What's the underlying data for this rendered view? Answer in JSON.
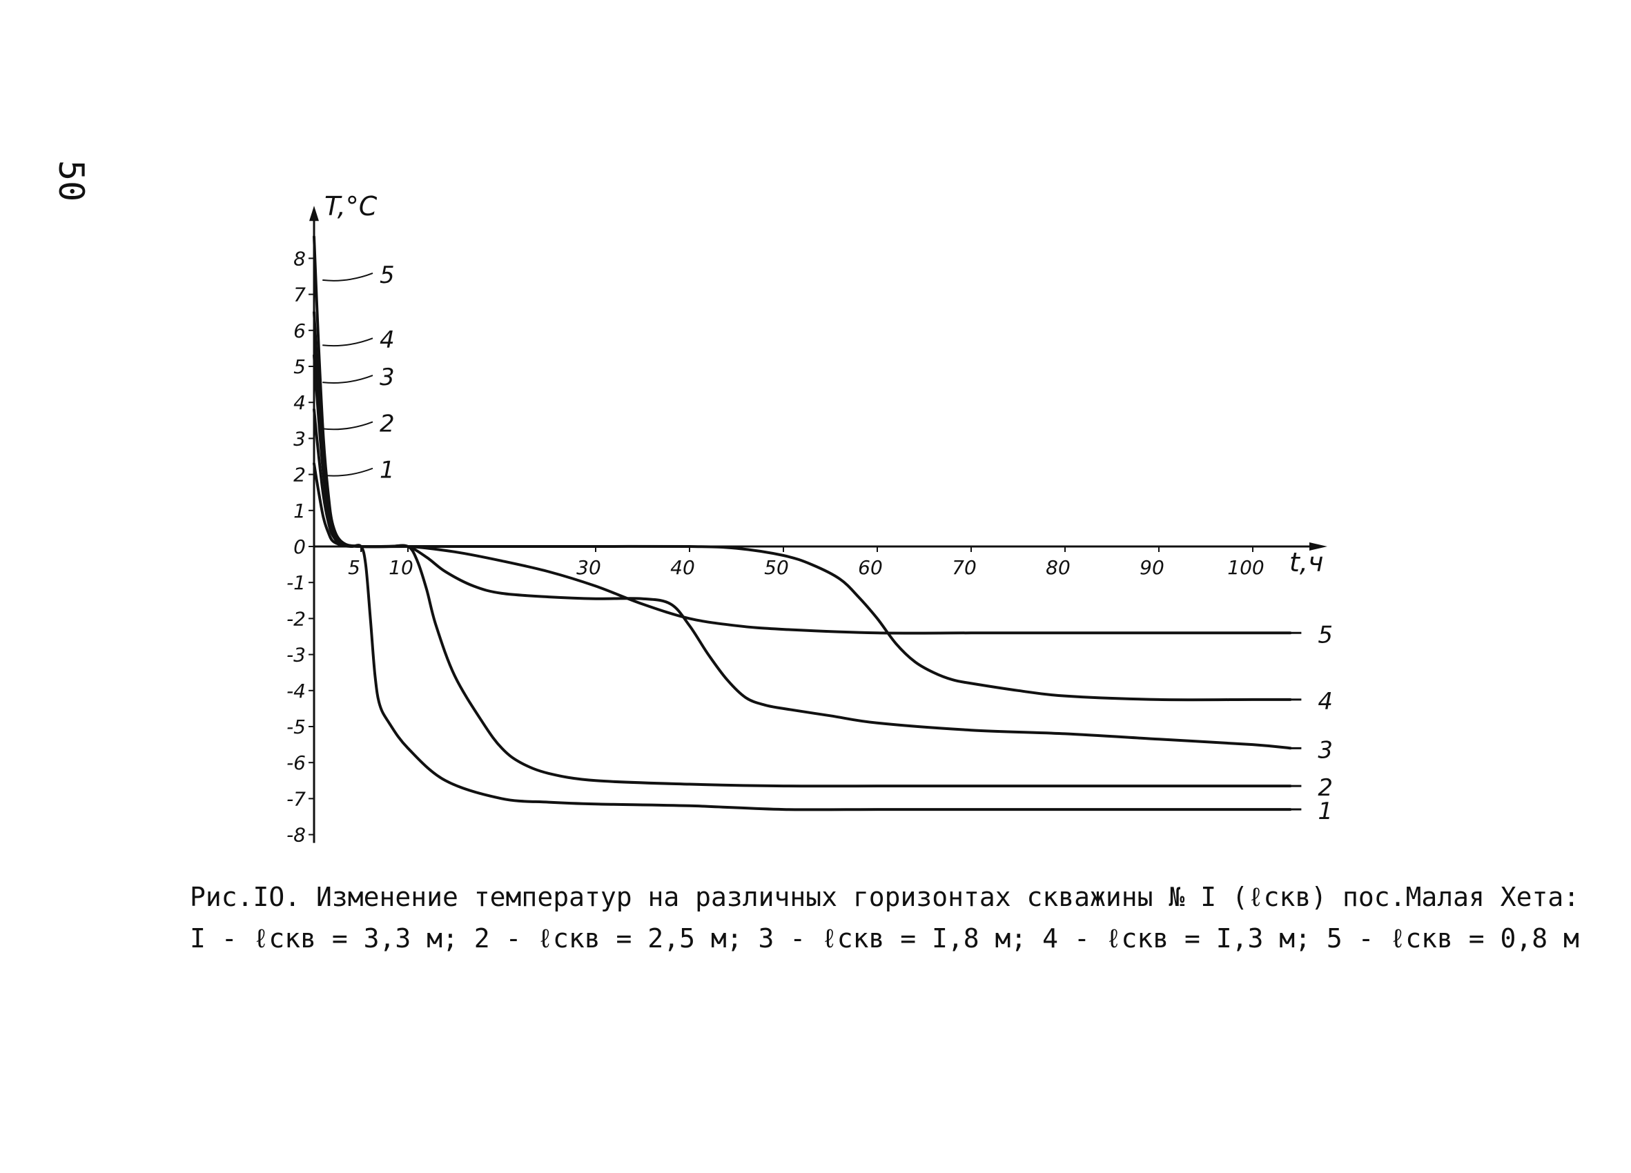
{
  "page_number": "50",
  "caption": {
    "line1": "Рис.IO. Изменение температур на различных горизонтах скважины № I (ℓскв) пос.Малая Хета:",
    "line2": "I - ℓскв = 3,3 м; 2 - ℓскв = 2,5 м; 3 - ℓскв = I,8 м; 4 - ℓскв = I,3 м; 5 - ℓскв = 0,8 м"
  },
  "chart_data": {
    "type": "line",
    "title": "",
    "xlabel": "t,ч",
    "ylabel": "T,°C",
    "xlim": [
      0,
      105
    ],
    "ylim": [
      -8,
      9
    ],
    "x_ticks": [
      5,
      10,
      30,
      40,
      50,
      60,
      70,
      80,
      90,
      100
    ],
    "x_tick_labels": [
      "5",
      "10",
      "30",
      "40",
      "50",
      "60",
      "70",
      "80",
      "90",
      "100"
    ],
    "y_ticks": [
      8,
      7,
      6,
      5,
      4,
      3,
      2,
      1,
      0,
      -1,
      -2,
      -3,
      -4,
      -5,
      -6,
      -7,
      -8
    ],
    "y_tick_labels": [
      "8",
      "7",
      "6",
      "5",
      "4",
      "3",
      "2",
      "1",
      "0",
      "-1",
      "-2",
      "-3",
      "-4",
      "-5",
      "-6",
      "-7",
      "-8"
    ],
    "grid": false,
    "series": [
      {
        "name": "1",
        "x": [
          0,
          0.5,
          1,
          1.5,
          2,
          3,
          4,
          5,
          5.5,
          6,
          6.5,
          7,
          8,
          10,
          14,
          20,
          25,
          30,
          40,
          50,
          60,
          70,
          80,
          90,
          100,
          104
        ],
        "y": [
          2.3,
          1.5,
          0.8,
          0.4,
          0.15,
          0.03,
          0,
          0,
          -0.5,
          -2,
          -3.6,
          -4.4,
          -4.9,
          -5.6,
          -6.5,
          -7.0,
          -7.1,
          -7.15,
          -7.2,
          -7.3,
          -7.3,
          -7.3,
          -7.3,
          -7.3,
          -7.3,
          -7.3
        ]
      },
      {
        "name": "2",
        "x": [
          0,
          0.5,
          1,
          1.5,
          2,
          3,
          5,
          8,
          10,
          11,
          12,
          13,
          15,
          18,
          20,
          22,
          25,
          30,
          40,
          50,
          60,
          70,
          80,
          90,
          100,
          104
        ],
        "y": [
          3.8,
          2.5,
          1.4,
          0.7,
          0.3,
          0.05,
          0,
          0,
          0,
          -0.4,
          -1.2,
          -2.2,
          -3.6,
          -4.9,
          -5.6,
          -6.0,
          -6.3,
          -6.5,
          -6.6,
          -6.65,
          -6.65,
          -6.65,
          -6.65,
          -6.65,
          -6.65,
          -6.65
        ]
      },
      {
        "name": "3",
        "x": [
          0,
          0.5,
          1,
          1.5,
          2,
          3,
          5,
          8,
          10,
          12,
          14,
          17,
          20,
          25,
          30,
          35,
          38,
          40,
          42,
          44,
          46,
          48,
          50,
          55,
          60,
          70,
          80,
          90,
          100,
          104
        ],
        "y": [
          5.3,
          3.5,
          2.0,
          1.0,
          0.4,
          0.08,
          0,
          0,
          0,
          -0.3,
          -0.7,
          -1.1,
          -1.3,
          -1.4,
          -1.45,
          -1.45,
          -1.6,
          -2.2,
          -3.0,
          -3.7,
          -4.2,
          -4.4,
          -4.5,
          -4.7,
          -4.9,
          -5.1,
          -5.2,
          -5.35,
          -5.5,
          -5.6
        ]
      },
      {
        "name": "4",
        "x": [
          0,
          0.5,
          1,
          1.5,
          2,
          3,
          5,
          10,
          20,
          30,
          40,
          45,
          50,
          53,
          56,
          58,
          60,
          62,
          64,
          66,
          68,
          70,
          75,
          80,
          90,
          100,
          104
        ],
        "y": [
          6.5,
          4.3,
          2.4,
          1.2,
          0.5,
          0.1,
          0,
          0,
          0,
          0,
          0,
          -0.05,
          -0.25,
          -0.5,
          -0.9,
          -1.4,
          -2.0,
          -2.7,
          -3.2,
          -3.5,
          -3.7,
          -3.8,
          -4.0,
          -4.15,
          -4.25,
          -4.25,
          -4.25
        ]
      },
      {
        "name": "5",
        "x": [
          0,
          0.5,
          1,
          1.5,
          2,
          3,
          5,
          10,
          15,
          20,
          25,
          30,
          35,
          40,
          45,
          50,
          60,
          70,
          80,
          90,
          100,
          104
        ],
        "y": [
          8.6,
          5.5,
          3.0,
          1.5,
          0.6,
          0.12,
          0,
          0,
          -0.15,
          -0.4,
          -0.7,
          -1.1,
          -1.6,
          -2.0,
          -2.2,
          -2.3,
          -2.4,
          -2.4,
          -2.4,
          -2.4,
          -2.4,
          -2.4
        ]
      }
    ],
    "legend": "right-end labels",
    "colors": {
      "line": "#111111",
      "background": "#ffffff"
    }
  }
}
